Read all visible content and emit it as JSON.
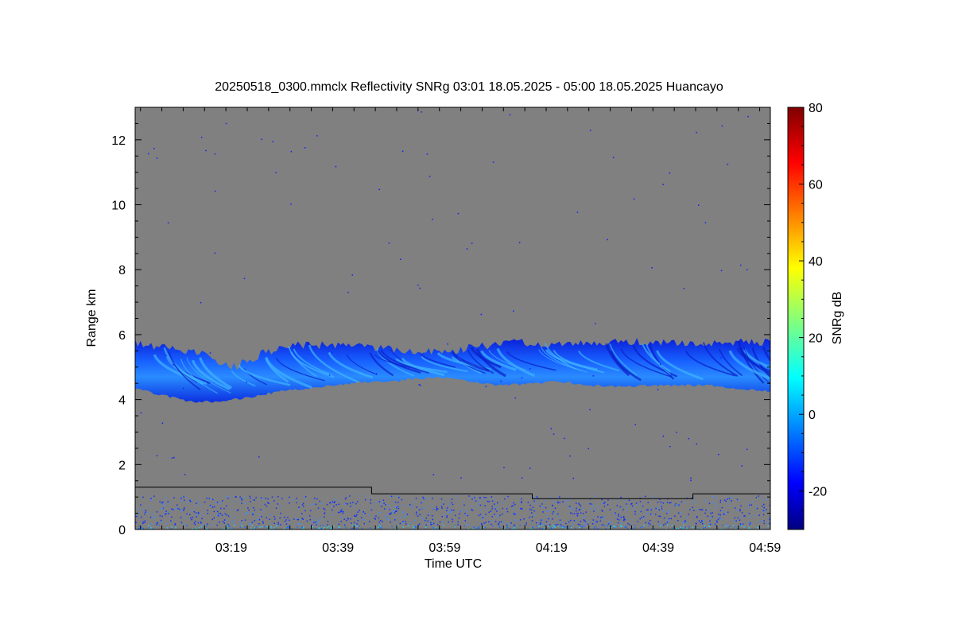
{
  "chart_data": {
    "type": "heatmap",
    "title": "20250518_0300.mmclx Reflectivity SNRg   03:01 18.05.2025 - 05:00 18.05.2025 Huancayo",
    "xlabel": "Time UTC",
    "ylabel": "Range km",
    "x_range_minutes": [
      181,
      300
    ],
    "x_ticks": [
      {
        "minute": 199,
        "label": "03:19"
      },
      {
        "minute": 219,
        "label": "03:39"
      },
      {
        "minute": 239,
        "label": "03:59"
      },
      {
        "minute": 259,
        "label": "04:19"
      },
      {
        "minute": 279,
        "label": "04:39"
      },
      {
        "minute": 299,
        "label": "04:59"
      }
    ],
    "ylim": [
      0,
      13
    ],
    "y_ticks": [
      {
        "value": 0,
        "label": "0"
      },
      {
        "value": 2,
        "label": "2"
      },
      {
        "value": 4,
        "label": "4"
      },
      {
        "value": 6,
        "label": "6"
      },
      {
        "value": 8,
        "label": "8"
      },
      {
        "value": 10,
        "label": "10"
      },
      {
        "value": 12,
        "label": "12"
      }
    ],
    "colorbar": {
      "label": "SNRg dB",
      "range": [
        -30,
        80
      ],
      "ticks": [
        {
          "value": -20,
          "label": "-20"
        },
        {
          "value": 0,
          "label": "0"
        },
        {
          "value": 20,
          "label": "20"
        },
        {
          "value": 40,
          "label": "40"
        },
        {
          "value": 60,
          "label": "60"
        },
        {
          "value": 80,
          "label": "80"
        }
      ],
      "colors": [
        "#000080",
        "#0000ff",
        "#00ffff",
        "#ffff00",
        "#ff0000",
        "#800000"
      ]
    },
    "background_color": "#808080",
    "echo_layer": {
      "description_values": "cloud layer between about 4 and 6 km",
      "top_km": [
        [
          181,
          5.85
        ],
        [
          187,
          5.7
        ],
        [
          193,
          5.55
        ],
        [
          199,
          5.1
        ],
        [
          205,
          5.55
        ],
        [
          211,
          5.8
        ],
        [
          218,
          5.8
        ],
        [
          225,
          5.75
        ],
        [
          232,
          5.6
        ],
        [
          239,
          5.6
        ],
        [
          245,
          5.75
        ],
        [
          252,
          5.9
        ],
        [
          258,
          5.85
        ],
        [
          265,
          5.85
        ],
        [
          272,
          5.9
        ],
        [
          279,
          5.9
        ],
        [
          285,
          5.85
        ],
        [
          292,
          5.9
        ],
        [
          300,
          5.9
        ]
      ],
      "bottom_km": [
        [
          181,
          4.3
        ],
        [
          186,
          4.1
        ],
        [
          191,
          3.9
        ],
        [
          197,
          3.9
        ],
        [
          203,
          4.05
        ],
        [
          209,
          4.25
        ],
        [
          216,
          4.35
        ],
        [
          223,
          4.5
        ],
        [
          226,
          4.5
        ],
        [
          229,
          4.5
        ],
        [
          233,
          4.6
        ],
        [
          238,
          4.65
        ],
        [
          243,
          4.55
        ],
        [
          249,
          4.4
        ],
        [
          255,
          4.45
        ],
        [
          260,
          4.5
        ],
        [
          266,
          4.4
        ],
        [
          271,
          4.35
        ],
        [
          278,
          4.4
        ],
        [
          283,
          4.4
        ],
        [
          289,
          4.4
        ],
        [
          294,
          4.3
        ],
        [
          300,
          4.2
        ]
      ]
    },
    "overlap_line_km": [
      {
        "from_minute": 181,
        "to_minute": 225.3,
        "value": 1.3
      },
      {
        "from_minute": 225.3,
        "to_minute": 255.4,
        "value": 1.1
      },
      {
        "from_minute": 255.4,
        "to_minute": 285.5,
        "value": 0.95
      },
      {
        "from_minute": 285.5,
        "to_minute": 300,
        "value": 1.1
      }
    ],
    "grid": false,
    "legend": "colorbar-right"
  }
}
